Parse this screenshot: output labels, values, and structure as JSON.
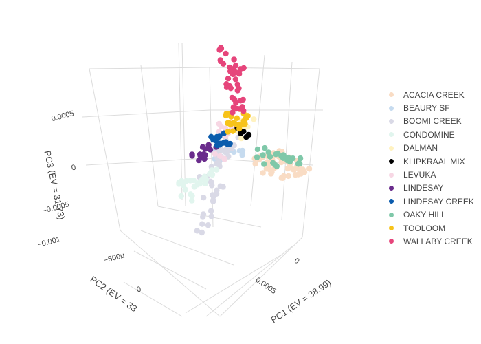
{
  "chart_data": {
    "type": "scatter",
    "dimensions": "3d",
    "axes": {
      "x": {
        "label": "PC1 (EV = 38.99)",
        "ticks": [
          "0",
          "0.0005"
        ]
      },
      "y": {
        "label": "PC2 (EV = 33",
        "ticks": [
          "−500μ",
          "0"
        ]
      },
      "z": {
        "label": "PC3 (EV = 31.73)",
        "ticks": [
          "0.0005",
          "0",
          "−0.0005",
          "−0.001"
        ]
      }
    },
    "legend_position": "right",
    "series": [
      {
        "name": "ACACIA CREEK",
        "color": "#f9dcc4"
      },
      {
        "name": "BEAURY SF",
        "color": "#c6dbef"
      },
      {
        "name": "BOOMI CREEK",
        "color": "#d9d9e6"
      },
      {
        "name": "CONDOMINE",
        "color": "#e1f5ee"
      },
      {
        "name": "DALMAN",
        "color": "#fff2c0"
      },
      {
        "name": "KLIPKRAAL MIX",
        "color": "#000000"
      },
      {
        "name": "LEVUKA",
        "color": "#f7d7e4"
      },
      {
        "name": "LINDESAY",
        "color": "#6a2c8c"
      },
      {
        "name": "LINDESAY CREEK",
        "color": "#0b5cad"
      },
      {
        "name": "OAKY HILL",
        "color": "#7fc8a9"
      },
      {
        "name": "TOOLOOM",
        "color": "#f7c31a"
      },
      {
        "name": "WALLABY CREEK",
        "color": "#e6457b"
      }
    ]
  }
}
